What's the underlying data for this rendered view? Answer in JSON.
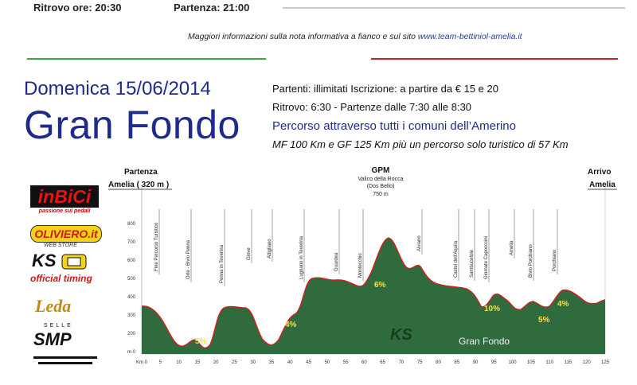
{
  "top": {
    "ritrovo": "Ritrovo ore: 20:30",
    "partenza": "Partenza: 21:00",
    "info": "Maggiori informazioni sulla nota informativa a fianco e sul sito ",
    "site": "www.team-bettiniol-amelia.it"
  },
  "header": {
    "date": "Domenica 15/06/2014",
    "title": "Gran Fondo",
    "line1": "Partenti: illimitati   Iscrizione: a partire da € 15 e 20",
    "line2": "Ritrovo: 6:30 - Partenze  dalle 7:30 alle 8:30",
    "line3": "Percorso attraverso tutti i comuni dell’Amerino",
    "line4": "MF 100 Km e GF 125 Km più un percorso solo turistico di 57 Km"
  },
  "sponsors": {
    "inbici": "inBiCi",
    "inbici_tag": "passione sui pedali",
    "oliviero": "OLIVIERO.it",
    "oliviero_tag": "WEB STORE",
    "ks": "KS",
    "ks_tag": "official timing",
    "leda": "Leda",
    "selle": "SELLE",
    "smp": "SMP"
  },
  "profile": {
    "start_label": "Partenza",
    "start_place": "Amelia ( 320 m )",
    "gpm_label": "GPM",
    "gpm_place1": "Valico della Rocca",
    "gpm_place2": "(Dos Bello)",
    "gpm_alt": "750 m",
    "end_label": "Arrivo",
    "end_place": "Amelia",
    "watermark": "Gran Fondo",
    "watermark_ks": "KS",
    "pcts": [
      "5%",
      "4%",
      "6%",
      "10%",
      "5%",
      "4%"
    ],
    "places": [
      "Fine Percorso Turistico",
      "Orte - Bivio Penna",
      "Penna in Teverina",
      "Giove",
      "Attigliano",
      "Lugnano in Teverina",
      "Guardea",
      "Montecchio",
      "Alviano",
      "Castel dell’Aquila",
      "Sambucetole",
      "Giornate Capocccini",
      "Amelia",
      "Bivio Porchiano",
      "Porchiano"
    ],
    "y_ticks": [
      "800",
      "700",
      "600",
      "500",
      "400",
      "300",
      "200",
      "m 0"
    ],
    "x_ticks": [
      "Km 0",
      "5",
      "10",
      "15",
      "20",
      "25",
      "30",
      "35",
      "40",
      "45",
      "50",
      "55",
      "60",
      "65",
      "70",
      "75",
      "80",
      "85",
      "90",
      "95",
      "100",
      "105",
      "110",
      "115",
      "120",
      "125"
    ]
  },
  "colors": {
    "title_blue": "#1e2a8c",
    "profile_green": "#2f6b3c",
    "profile_line": "#d21f1f"
  }
}
